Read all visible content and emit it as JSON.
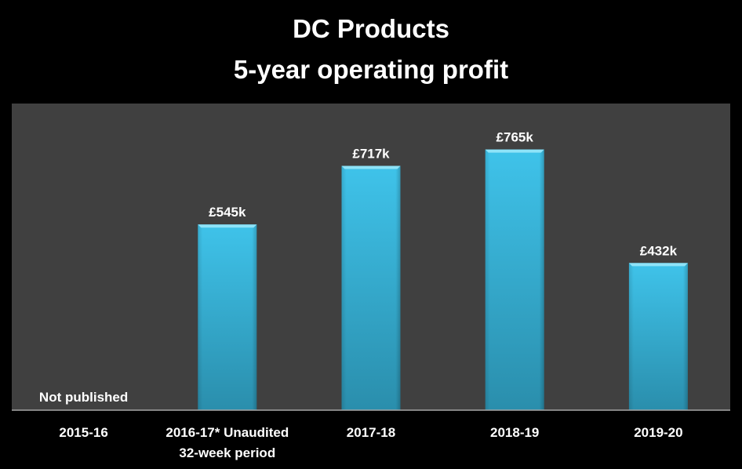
{
  "chart_data": {
    "type": "bar",
    "title": [
      "DC Products",
      "5-year operating profit"
    ],
    "categories": [
      [
        "2015-16"
      ],
      [
        "2016-17* Unaudited",
        "32-week period"
      ],
      [
        "2017-18"
      ],
      [
        "2018-19"
      ],
      [
        "2019-20"
      ]
    ],
    "values": [
      null,
      545,
      717,
      765,
      432
    ],
    "data_labels": [
      "Not published",
      "£545k",
      "£717k",
      "£765k",
      "£432k"
    ],
    "unit": "£k",
    "ylim": [
      0,
      900
    ],
    "xlabel": "",
    "ylabel": "",
    "grid": false,
    "legend": "none",
    "colors": {
      "bar": "#3bbde3",
      "bar_dark": "#2a8fae",
      "plot_bg": "#404040",
      "page_bg": "#000000",
      "axis": "#a6a6a6"
    }
  }
}
